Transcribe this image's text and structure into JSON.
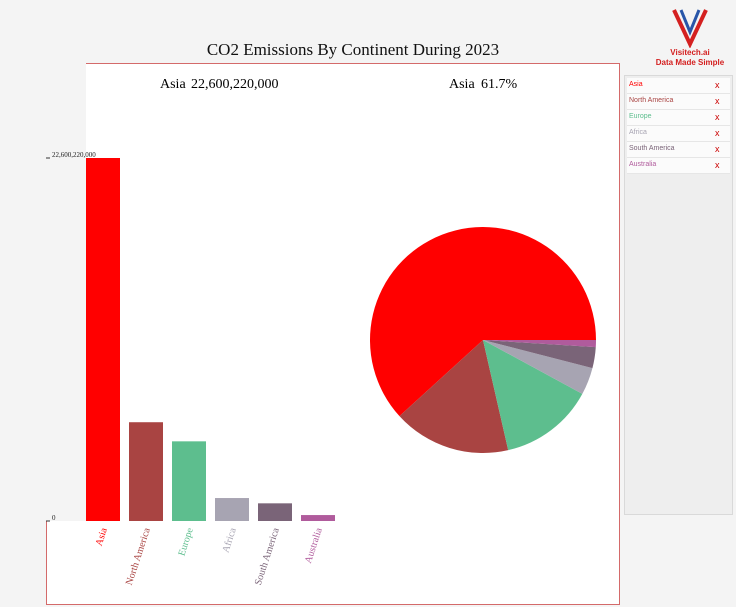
{
  "page": {
    "title": "CO2 Emissions By Continent During 2023",
    "logo": {
      "name": "Visitech.ai",
      "tagline": "Data Made Simple"
    }
  },
  "colors": {
    "Asia": "#ff0000",
    "North America": "#a94442",
    "Europe": "#5dbe8e",
    "Africa": "#a7a4b2",
    "South America": "#7a6478",
    "Australia": "#b05b9c"
  },
  "legend": {
    "items": [
      {
        "label": "Asia",
        "remove": "x"
      },
      {
        "label": "North America",
        "remove": "x"
      },
      {
        "label": "Europe",
        "remove": "x"
      },
      {
        "label": "Africa",
        "remove": "x"
      },
      {
        "label": "South America",
        "remove": "x"
      },
      {
        "label": "Australia",
        "remove": "x"
      }
    ]
  },
  "chart_data": [
    {
      "type": "bar",
      "headline": {
        "category": "Asia",
        "value": "22,600,220,000"
      },
      "categories": [
        "Asia",
        "North America",
        "Europe",
        "Africa",
        "South America",
        "Australia"
      ],
      "values": [
        22600220000,
        6150000000,
        4960000000,
        1430000000,
        1100000000,
        370000000
      ],
      "y_ticks": [
        {
          "value": 0,
          "label": "0"
        },
        {
          "value": 22600220000,
          "label": "22,600,220,000"
        }
      ],
      "ylim": [
        0,
        22600220000
      ]
    },
    {
      "type": "pie",
      "headline": {
        "category": "Asia",
        "value": "61.7%"
      },
      "categories": [
        "Asia",
        "North America",
        "Europe",
        "Africa",
        "South America",
        "Australia"
      ],
      "values": [
        61.7,
        16.8,
        13.5,
        3.9,
        3.0,
        1.0
      ]
    }
  ]
}
